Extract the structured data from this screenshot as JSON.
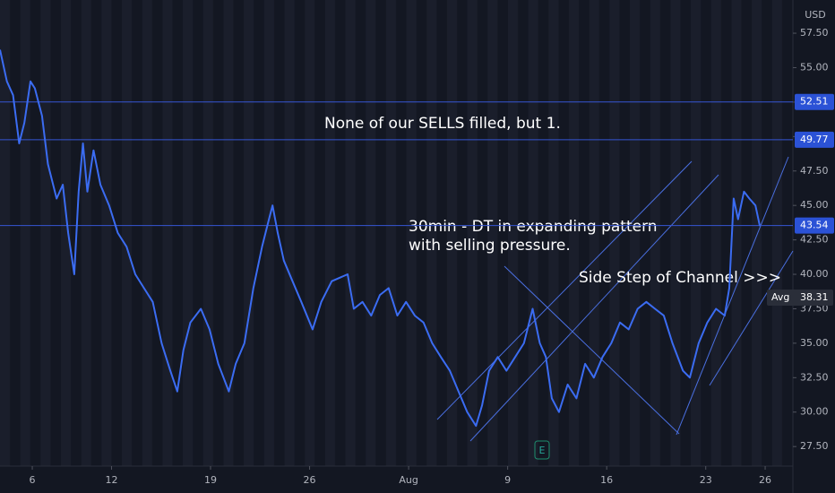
{
  "chart_data": {
    "type": "line",
    "currency": "USD",
    "x": [
      -1.63,
      -1.28,
      -0.97,
      -0.66,
      -0.4,
      -0.09,
      0.13,
      0.49,
      0.79,
      1.23,
      1.54,
      1.81,
      2.12,
      2.34,
      2.56,
      2.78,
      3.09,
      3.44,
      3.88,
      4.32,
      4.76,
      5.2,
      5.64,
      6.08,
      6.53,
      6.97,
      7.32,
      7.63,
      7.98,
      8.51,
      8.95,
      9.39,
      9.92,
      10.27,
      10.71,
      11.16,
      11.6,
      11.95,
      12.13,
      12.39,
      12.7,
      13.14,
      13.58,
      14.15,
      14.59,
      15.12,
      15.92,
      16.23,
      16.67,
      17.11,
      17.55,
      17.99,
      18.43,
      18.87,
      19.31,
      19.75,
      20.19,
      20.63,
      21.08,
      21.52,
      21.96,
      22.4,
      22.71,
      23.06,
      23.5,
      23.94,
      24.38,
      24.82,
      25.26,
      25.62,
      25.93,
      26.23,
      26.59,
      27.03,
      27.47,
      27.91,
      28.35,
      28.79,
      29.23,
      29.67,
      30.11,
      30.56,
      31.0,
      31.44,
      31.88,
      32.32,
      32.85,
      33.2,
      33.64,
      34.08,
      34.52,
      34.96,
      35.19,
      35.41,
      35.63,
      35.93,
      36.2,
      36.51,
      36.73
    ],
    "series": [
      {
        "color": "#3b6cf2",
        "values": [
          56.3,
          54,
          53,
          49.5,
          51,
          54,
          53.5,
          51.5,
          48,
          45.5,
          46.5,
          43,
          40,
          46,
          49.5,
          46,
          49,
          46.5,
          45,
          43,
          42,
          40,
          39,
          38,
          35,
          33,
          31.5,
          34.5,
          36.5,
          37.5,
          36,
          33.5,
          31.5,
          33.5,
          35,
          39,
          42,
          44,
          45,
          43,
          41,
          39.5,
          38,
          36,
          38,
          39.5,
          40,
          37.5,
          38,
          37,
          38.5,
          39,
          37,
          38,
          37,
          36.5,
          35,
          34,
          33,
          31.5,
          30,
          29,
          30.5,
          33,
          34,
          33,
          34,
          35,
          37.5,
          35,
          34,
          31,
          30,
          32,
          31,
          33.5,
          32.5,
          34,
          35,
          36.5,
          36,
          37.5,
          38,
          37.5,
          37,
          35,
          33,
          32.5,
          35,
          36.5,
          37.5,
          37,
          39,
          45.5,
          44,
          46,
          45.5,
          45,
          43.5
        ]
      }
    ],
    "xlim": [
      -1.63,
      38.4
    ],
    "ylim": [
      26.08,
      59.91
    ],
    "yticks": [
      {
        "value": 57.5,
        "label": "57.50"
      },
      {
        "value": 55,
        "label": "55.00"
      },
      {
        "value": 52.5,
        "label": "52.50"
      },
      {
        "value": 50,
        "label": "50.00"
      },
      {
        "value": 47.5,
        "label": "47.50"
      },
      {
        "value": 45,
        "label": "45.00"
      },
      {
        "value": 42.5,
        "label": "42.50"
      },
      {
        "value": 40,
        "label": "40.00"
      },
      {
        "value": 37.5,
        "label": "37.50"
      },
      {
        "value": 35,
        "label": "35.00"
      },
      {
        "value": 32.5,
        "label": "32.50"
      },
      {
        "value": 30,
        "label": "30.00"
      },
      {
        "value": 27.5,
        "label": "27.50"
      }
    ],
    "xticks": [
      {
        "value": 0,
        "label": "6"
      },
      {
        "value": 4,
        "label": "12"
      },
      {
        "value": 9,
        "label": "19"
      },
      {
        "value": 14,
        "label": "26"
      },
      {
        "value": 19,
        "label": "Aug"
      },
      {
        "value": 24,
        "label": "9"
      },
      {
        "value": 29,
        "label": "16"
      },
      {
        "value": 34,
        "label": "23"
      },
      {
        "value": 37,
        "label": "26"
      }
    ],
    "hlines": [
      52.51,
      49.77,
      43.54
    ],
    "avg": {
      "name": "Avg",
      "value": 38.31
    },
    "annotations": [
      "None of our SELLS filled, but 1.",
      "30min - DT in expanding pattern",
      "with selling pressure.",
      "Side Step of Channel >>>"
    ],
    "event_marker": "E"
  }
}
